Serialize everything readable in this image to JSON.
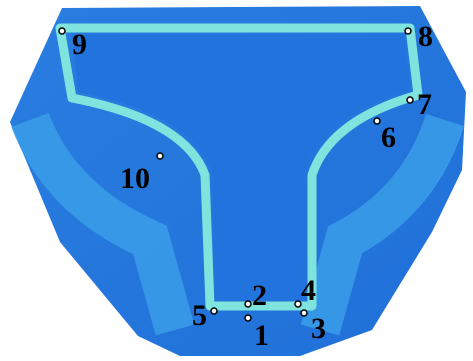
{
  "points": [
    {
      "label": "1"
    },
    {
      "label": "2"
    },
    {
      "label": "3"
    },
    {
      "label": "4"
    },
    {
      "label": "5"
    },
    {
      "label": "6"
    },
    {
      "label": "7"
    },
    {
      "label": "8"
    },
    {
      "label": "9"
    },
    {
      "label": "10"
    }
  ]
}
